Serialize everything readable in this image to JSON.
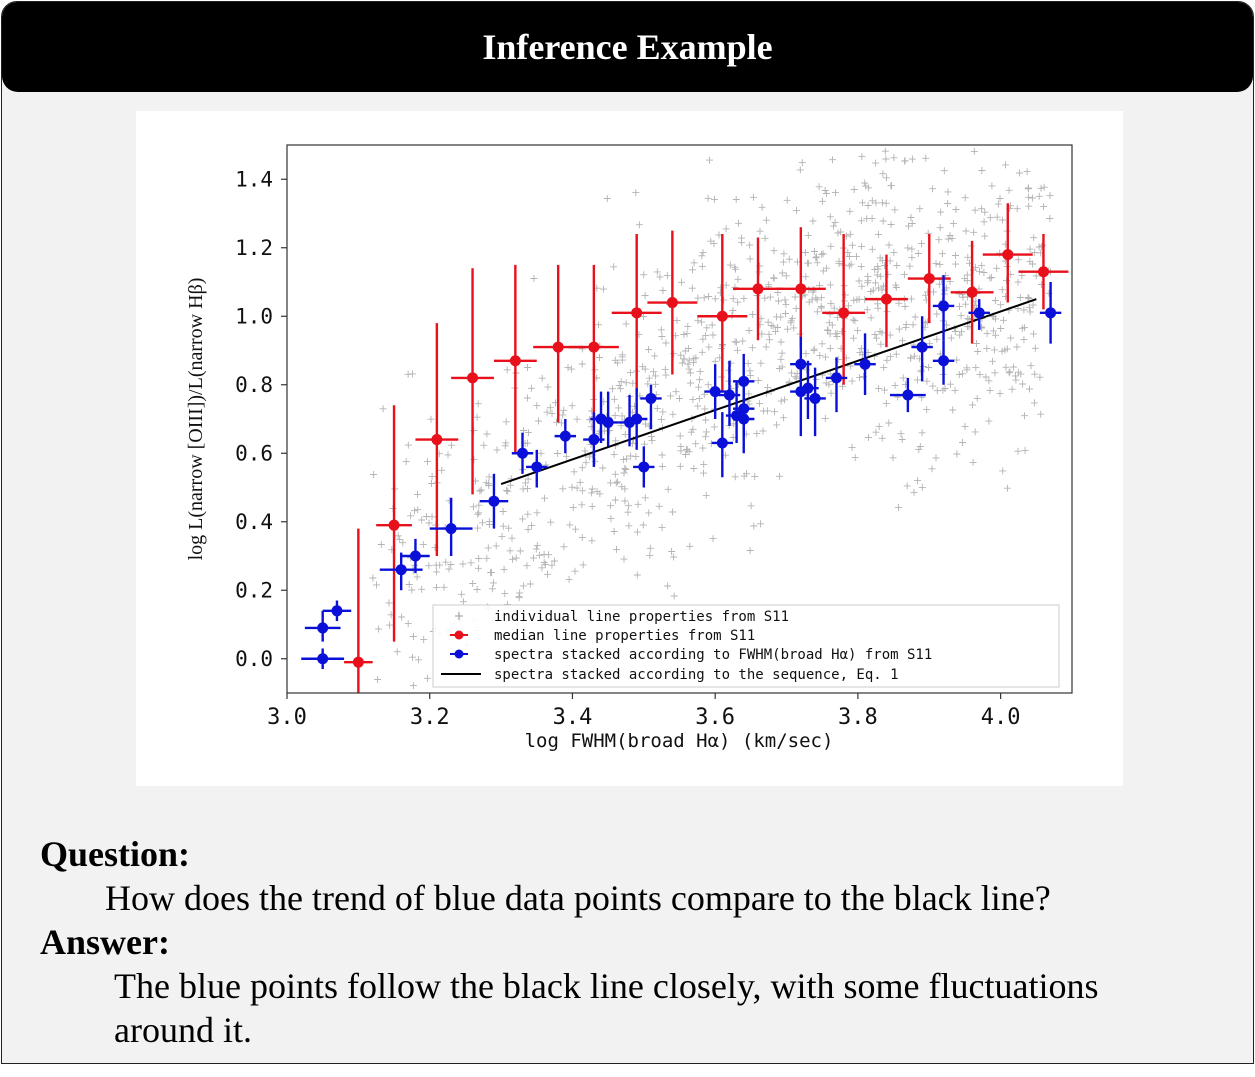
{
  "header": {
    "title": "Inference Example"
  },
  "question": {
    "label": "Question:",
    "text": "How does the trend of blue data points compare to the black line?"
  },
  "answer": {
    "label": "Answer:",
    "text": "The blue points follow the black line closely, with some fluctuations around it."
  },
  "colors": {
    "red": "#e8101a",
    "blue": "#0a10d8",
    "line": "#000000",
    "gray": "#8a8a8a"
  },
  "chart_data": {
    "type": "scatter",
    "xlabel": "log FWHM(broad Hα) (km/sec)",
    "ylabel": "log L(narrow [OIII])/L(narrow Hβ)",
    "xlim": [
      3.0,
      4.1
    ],
    "ylim": [
      -0.1,
      1.5
    ],
    "x_ticks": [
      "3.0",
      "3.2",
      "3.4",
      "3.6",
      "3.8",
      "4.0"
    ],
    "y_ticks": [
      "0.0",
      "0.2",
      "0.4",
      "0.6",
      "0.8",
      "1.0",
      "1.2",
      "1.4"
    ],
    "legend_position": "bottom-right",
    "legend": [
      "individual line properties from S11",
      "median line properties from S11",
      "spectra stacked according to FWHM(broad Hα) from S11",
      "spectra stacked according to the sequence, Eq. 1"
    ],
    "red_points": [
      {
        "x": 3.1,
        "y": -0.01,
        "xerr": 0.02,
        "ylo": -0.1,
        "yhi": 0.38
      },
      {
        "x": 3.15,
        "y": 0.39,
        "xerr": 0.025,
        "ylo": 0.05,
        "yhi": 0.74
      },
      {
        "x": 3.21,
        "y": 0.64,
        "xerr": 0.03,
        "ylo": 0.3,
        "yhi": 0.98
      },
      {
        "x": 3.26,
        "y": 0.82,
        "xerr": 0.03,
        "ylo": 0.48,
        "yhi": 1.14
      },
      {
        "x": 3.32,
        "y": 0.87,
        "xerr": 0.03,
        "ylo": 0.6,
        "yhi": 1.15
      },
      {
        "x": 3.38,
        "y": 0.91,
        "xerr": 0.035,
        "ylo": 0.69,
        "yhi": 1.15
      },
      {
        "x": 3.43,
        "y": 0.91,
        "xerr": 0.035,
        "ylo": 0.62,
        "yhi": 1.15
      },
      {
        "x": 3.49,
        "y": 1.01,
        "xerr": 0.035,
        "ylo": 0.78,
        "yhi": 1.24
      },
      {
        "x": 3.54,
        "y": 1.04,
        "xerr": 0.035,
        "ylo": 0.83,
        "yhi": 1.25
      },
      {
        "x": 3.61,
        "y": 1.0,
        "xerr": 0.035,
        "ylo": 0.78,
        "yhi": 1.24
      },
      {
        "x": 3.66,
        "y": 1.08,
        "xerr": 0.035,
        "ylo": 0.93,
        "yhi": 1.23
      },
      {
        "x": 3.72,
        "y": 1.08,
        "xerr": 0.035,
        "ylo": 0.91,
        "yhi": 1.26
      },
      {
        "x": 3.78,
        "y": 1.01,
        "xerr": 0.03,
        "ylo": 0.8,
        "yhi": 1.24
      },
      {
        "x": 3.84,
        "y": 1.05,
        "xerr": 0.03,
        "ylo": 0.91,
        "yhi": 1.18
      },
      {
        "x": 3.9,
        "y": 1.11,
        "xerr": 0.03,
        "ylo": 0.98,
        "yhi": 1.24
      },
      {
        "x": 3.96,
        "y": 1.07,
        "xerr": 0.03,
        "ylo": 0.92,
        "yhi": 1.22
      },
      {
        "x": 4.01,
        "y": 1.18,
        "xerr": 0.035,
        "ylo": 1.04,
        "yhi": 1.33
      },
      {
        "x": 4.06,
        "y": 1.13,
        "xerr": 0.035,
        "ylo": 1.02,
        "yhi": 1.24
      }
    ],
    "blue_points": [
      {
        "x": 3.05,
        "y": 0.0,
        "xerr": 0.03,
        "ylo": -0.03,
        "yhi": 0.03
      },
      {
        "x": 3.05,
        "y": 0.09,
        "xerr": 0.025,
        "ylo": 0.05,
        "yhi": 0.14
      },
      {
        "x": 3.07,
        "y": 0.14,
        "xerr": 0.02,
        "ylo": 0.11,
        "yhi": 0.17
      },
      {
        "x": 3.16,
        "y": 0.26,
        "xerr": 0.03,
        "ylo": 0.2,
        "yhi": 0.31
      },
      {
        "x": 3.18,
        "y": 0.3,
        "xerr": 0.02,
        "ylo": 0.25,
        "yhi": 0.35
      },
      {
        "x": 3.23,
        "y": 0.38,
        "xerr": 0.03,
        "ylo": 0.3,
        "yhi": 0.47
      },
      {
        "x": 3.29,
        "y": 0.46,
        "xerr": 0.02,
        "ylo": 0.38,
        "yhi": 0.54
      },
      {
        "x": 3.33,
        "y": 0.6,
        "xerr": 0.015,
        "ylo": 0.54,
        "yhi": 0.66
      },
      {
        "x": 3.35,
        "y": 0.56,
        "xerr": 0.015,
        "ylo": 0.5,
        "yhi": 0.61
      },
      {
        "x": 3.39,
        "y": 0.65,
        "xerr": 0.015,
        "ylo": 0.6,
        "yhi": 0.7
      },
      {
        "x": 3.43,
        "y": 0.64,
        "xerr": 0.015,
        "ylo": 0.56,
        "yhi": 0.72
      },
      {
        "x": 3.44,
        "y": 0.7,
        "xerr": 0.015,
        "ylo": 0.63,
        "yhi": 0.78
      },
      {
        "x": 3.45,
        "y": 0.69,
        "xerr": 0.015,
        "ylo": 0.62,
        "yhi": 0.78
      },
      {
        "x": 3.48,
        "y": 0.69,
        "xerr": 0.015,
        "ylo": 0.62,
        "yhi": 0.77
      },
      {
        "x": 3.49,
        "y": 0.7,
        "xerr": 0.015,
        "ylo": 0.61,
        "yhi": 0.79
      },
      {
        "x": 3.5,
        "y": 0.56,
        "xerr": 0.015,
        "ylo": 0.5,
        "yhi": 0.62
      },
      {
        "x": 3.51,
        "y": 0.76,
        "xerr": 0.015,
        "ylo": 0.67,
        "yhi": 0.8
      },
      {
        "x": 3.6,
        "y": 0.78,
        "xerr": 0.015,
        "ylo": 0.7,
        "yhi": 0.86
      },
      {
        "x": 3.62,
        "y": 0.77,
        "xerr": 0.015,
        "ylo": 0.68,
        "yhi": 0.87
      },
      {
        "x": 3.61,
        "y": 0.63,
        "xerr": 0.015,
        "ylo": 0.53,
        "yhi": 0.72
      },
      {
        "x": 3.63,
        "y": 0.71,
        "xerr": 0.015,
        "ylo": 0.63,
        "yhi": 0.81
      },
      {
        "x": 3.64,
        "y": 0.81,
        "xerr": 0.015,
        "ylo": 0.73,
        "yhi": 0.89
      },
      {
        "x": 3.64,
        "y": 0.73,
        "xerr": 0.015,
        "ylo": 0.65,
        "yhi": 0.79
      },
      {
        "x": 3.64,
        "y": 0.7,
        "xerr": 0.015,
        "ylo": 0.6,
        "yhi": 0.78
      },
      {
        "x": 3.72,
        "y": 0.86,
        "xerr": 0.015,
        "ylo": 0.78,
        "yhi": 0.94
      },
      {
        "x": 3.72,
        "y": 0.78,
        "xerr": 0.015,
        "ylo": 0.65,
        "yhi": 0.86
      },
      {
        "x": 3.73,
        "y": 0.79,
        "xerr": 0.015,
        "ylo": 0.7,
        "yhi": 0.87
      },
      {
        "x": 3.74,
        "y": 0.76,
        "xerr": 0.015,
        "ylo": 0.65,
        "yhi": 0.85
      },
      {
        "x": 3.77,
        "y": 0.82,
        "xerr": 0.015,
        "ylo": 0.72,
        "yhi": 0.88
      },
      {
        "x": 3.81,
        "y": 0.86,
        "xerr": 0.015,
        "ylo": 0.77,
        "yhi": 0.95
      },
      {
        "x": 3.87,
        "y": 0.77,
        "xerr": 0.025,
        "ylo": 0.72,
        "yhi": 0.82
      },
      {
        "x": 3.89,
        "y": 0.91,
        "xerr": 0.015,
        "ylo": 0.81,
        "yhi": 1.0
      },
      {
        "x": 3.92,
        "y": 0.87,
        "xerr": 0.015,
        "ylo": 0.8,
        "yhi": 0.93
      },
      {
        "x": 3.92,
        "y": 1.03,
        "xerr": 0.015,
        "ylo": 0.93,
        "yhi": 1.12
      },
      {
        "x": 3.97,
        "y": 1.01,
        "xerr": 0.015,
        "ylo": 0.96,
        "yhi": 1.05
      },
      {
        "x": 4.07,
        "y": 1.01,
        "xerr": 0.015,
        "ylo": 0.92,
        "yhi": 1.1
      }
    ],
    "fit_line": {
      "x": [
        3.3,
        4.05
      ],
      "y": [
        0.51,
        1.05
      ]
    }
  }
}
